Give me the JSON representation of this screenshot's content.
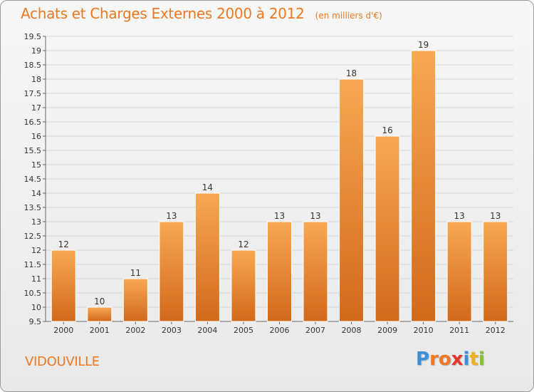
{
  "title": "Achats et Charges Externes 2000 à 2012",
  "unit_note": "(en milliers d'€)",
  "commune": "VIDOUVILLE",
  "logo": {
    "text": "Proxiti",
    "letters": [
      "P",
      "r",
      "o",
      "x",
      "i",
      "t",
      "i"
    ],
    "colors": [
      "#3a8fd8",
      "#f07820",
      "#f07820",
      "#e8362a",
      "#3a8fd8",
      "#f0b020",
      "#88c030"
    ]
  },
  "colors": {
    "accent": "#f07820",
    "bar_light": "#f8a852",
    "bar_dark": "#d2691b"
  },
  "chart_data": {
    "type": "bar",
    "categories": [
      "2000",
      "2001",
      "2002",
      "2003",
      "2004",
      "2005",
      "2006",
      "2007",
      "2008",
      "2009",
      "2010",
      "2011",
      "2012"
    ],
    "values": [
      12,
      10,
      11,
      13,
      14,
      12,
      13,
      13,
      18,
      16,
      19,
      13,
      13
    ],
    "value_labels": [
      "12",
      "10",
      "11",
      "13",
      "14",
      "12",
      "13",
      "13",
      "18",
      "16",
      "19",
      "13",
      "13"
    ],
    "ylim": [
      9.5,
      19.5
    ],
    "yticks": [
      9.5,
      10,
      10.5,
      11,
      11.5,
      12,
      12.5,
      13,
      13.5,
      14,
      14.5,
      15,
      15.5,
      16,
      16.5,
      17,
      17.5,
      18,
      18.5,
      19,
      19.5
    ],
    "ytick_labels": [
      "9.5",
      "10",
      "10.5",
      "11",
      "11.5",
      "12",
      "12.5",
      "13",
      "13.5",
      "14",
      "14.5",
      "15",
      "15.5",
      "16",
      "16.5",
      "17",
      "17.5",
      "18",
      "18.5",
      "19",
      "19.5"
    ],
    "grid": true
  }
}
